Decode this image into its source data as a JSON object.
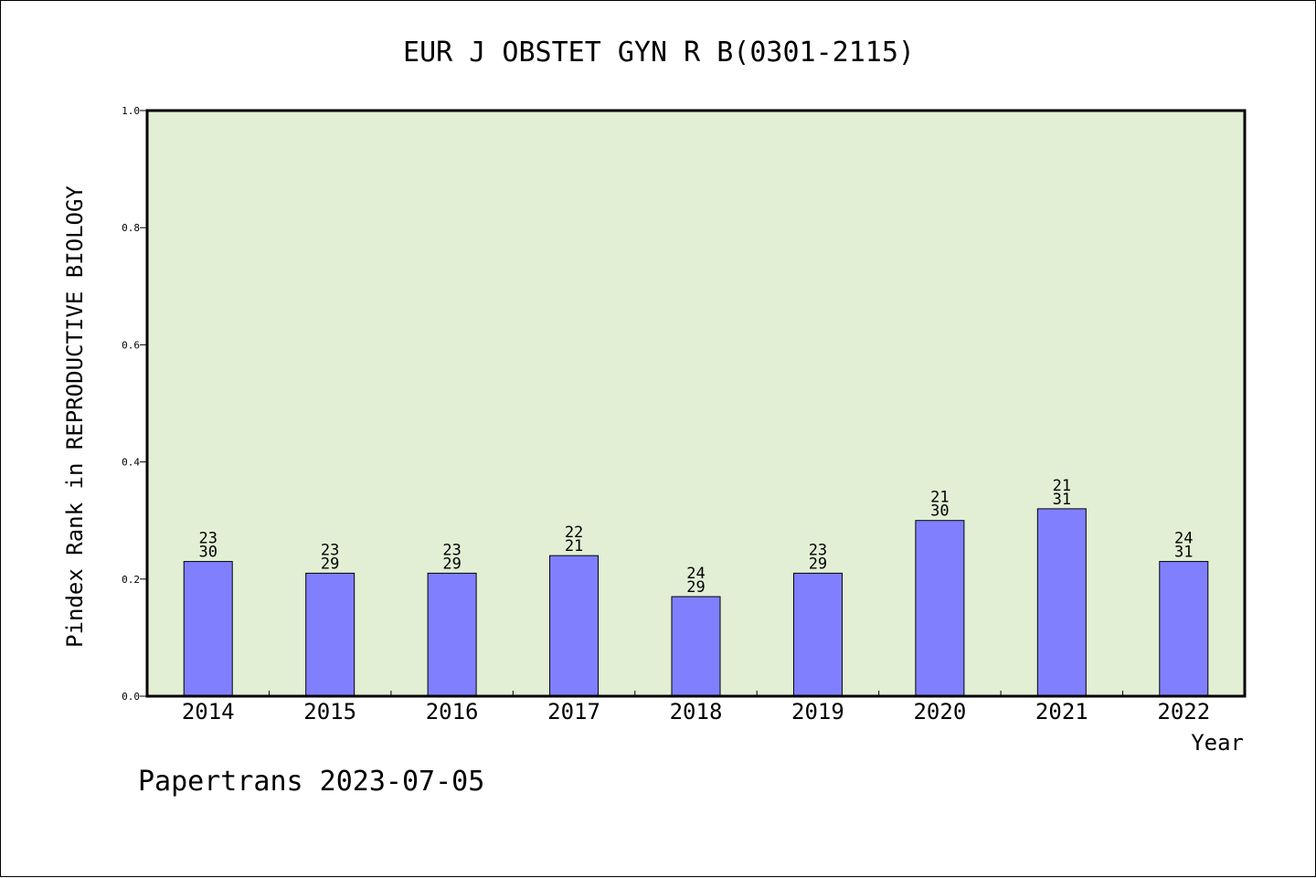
{
  "chart_data": {
    "type": "bar",
    "title": "EUR J OBSTET GYN R B(0301-2115)",
    "xlabel": "Year",
    "ylabel": "Pindex Rank in REPRODUCTIVE BIOLOGY",
    "footer": "Papertrans 2023-07-05",
    "categories": [
      "2014",
      "2015",
      "2016",
      "2017",
      "2018",
      "2019",
      "2020",
      "2021",
      "2022"
    ],
    "values": [
      0.23,
      0.21,
      0.21,
      0.24,
      0.17,
      0.21,
      0.3,
      0.32,
      0.23
    ],
    "labels_top": [
      "23",
      "23",
      "23",
      "22",
      "24",
      "23",
      "21",
      "21",
      "24"
    ],
    "labels_bottom": [
      "30",
      "29",
      "29",
      "21",
      "29",
      "29",
      "30",
      "31",
      "31"
    ],
    "ylim": [
      0,
      1.0
    ],
    "yticks": [
      "0.0",
      "0.2",
      "0.4",
      "0.6",
      "0.8",
      "1.0"
    ],
    "grid": false,
    "colors": {
      "plot_background": "#e2efd5",
      "bar_fill": "#8080ff",
      "bar_stroke": "#000000"
    }
  }
}
